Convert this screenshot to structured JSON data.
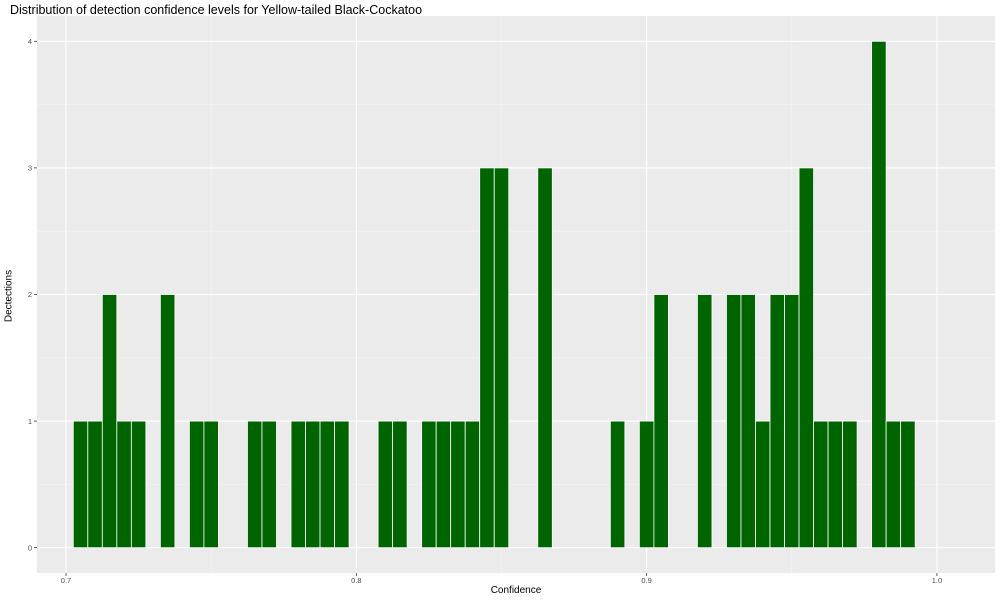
{
  "chart_data": {
    "type": "bar",
    "title": "Distribution of detection confidence levels for Yellow-tailed Black-Cockatoo",
    "xlabel": "Confidence",
    "ylabel": "Dectections",
    "xlim": [
      0.69,
      1.02
    ],
    "ylim": [
      -0.2,
      4.2
    ],
    "x_ticks": [
      "0.7",
      "0.8",
      "0.9",
      "1.0"
    ],
    "y_ticks": [
      "0",
      "1",
      "2",
      "3",
      "4"
    ],
    "bin_width": 0.005,
    "bar_color": "#006400",
    "panel_color": "#ebebeb",
    "grid": true,
    "x": [
      0.705,
      0.71,
      0.715,
      0.72,
      0.725,
      0.735,
      0.745,
      0.75,
      0.765,
      0.77,
      0.78,
      0.785,
      0.79,
      0.795,
      0.81,
      0.815,
      0.825,
      0.83,
      0.835,
      0.84,
      0.845,
      0.85,
      0.865,
      0.89,
      0.9,
      0.905,
      0.92,
      0.93,
      0.935,
      0.94,
      0.945,
      0.95,
      0.955,
      0.96,
      0.965,
      0.97,
      0.98,
      0.985,
      0.99
    ],
    "values": [
      1,
      1,
      2,
      1,
      1,
      2,
      1,
      1,
      1,
      1,
      1,
      1,
      1,
      1,
      1,
      1,
      1,
      1,
      1,
      1,
      3,
      3,
      3,
      1,
      1,
      2,
      2,
      2,
      2,
      1,
      2,
      2,
      3,
      1,
      1,
      1,
      4,
      1,
      1
    ]
  }
}
